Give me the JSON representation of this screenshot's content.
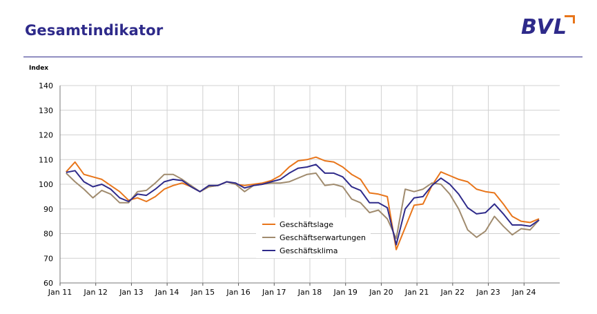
{
  "header": {
    "title": "Gesamtindikator",
    "logo": "BVL"
  },
  "colors": {
    "brand": "#2e2a8a",
    "accent": "#e8751a",
    "grid": "#d0d0d0"
  },
  "chart_data": {
    "type": "line",
    "ylabel": "Index",
    "ylim": [
      60,
      140
    ],
    "yticks": [
      60,
      70,
      80,
      90,
      100,
      110,
      120,
      130,
      140
    ],
    "xlim": [
      2011.0,
      2025.0
    ],
    "xticks": [
      {
        "label": "Jan 11",
        "x": 2011
      },
      {
        "label": "Jan 12",
        "x": 2012
      },
      {
        "label": "Jan 13",
        "x": 2013
      },
      {
        "label": "Jan 14",
        "x": 2014
      },
      {
        "label": "Jan 15",
        "x": 2015
      },
      {
        "label": "Jan 16",
        "x": 2016
      },
      {
        "label": "Jan 17",
        "x": 2017
      },
      {
        "label": "Jan 18",
        "x": 2018
      },
      {
        "label": "Jan 19",
        "x": 2019
      },
      {
        "label": "Jan 20",
        "x": 2020
      },
      {
        "label": "Jan 21",
        "x": 2021
      },
      {
        "label": "Jan 22",
        "x": 2022
      },
      {
        "label": "Jan 23",
        "x": 2023
      },
      {
        "label": "Jan 24",
        "x": 2024
      }
    ],
    "grid": true,
    "legend": "bottom-center",
    "x": [
      2011.17,
      2011.42,
      2011.67,
      2011.92,
      2012.17,
      2012.42,
      2012.67,
      2012.92,
      2013.17,
      2013.42,
      2013.67,
      2013.92,
      2014.17,
      2014.42,
      2014.67,
      2014.92,
      2015.17,
      2015.42,
      2015.67,
      2015.92,
      2016.17,
      2016.42,
      2016.67,
      2016.92,
      2017.17,
      2017.42,
      2017.67,
      2017.92,
      2018.17,
      2018.42,
      2018.67,
      2018.92,
      2019.17,
      2019.42,
      2019.67,
      2019.92,
      2020.17,
      2020.42,
      2020.67,
      2020.92,
      2021.17,
      2021.42,
      2021.67,
      2021.92,
      2022.17,
      2022.42,
      2022.67,
      2022.92,
      2023.17,
      2023.42,
      2023.67,
      2023.92,
      2024.17,
      2024.42
    ],
    "series": [
      {
        "name": "Geschäftslage",
        "color": "#e8751a",
        "values": [
          105,
          109,
          104,
          103,
          102,
          99.5,
          97,
          93.5,
          94.5,
          93,
          95,
          98,
          99.5,
          100.5,
          99,
          97,
          99,
          99.5,
          101,
          100,
          99.5,
          100,
          100.5,
          101.5,
          103.5,
          107,
          109.5,
          110,
          111,
          109.5,
          109,
          107,
          104,
          102,
          96.5,
          96,
          95,
          73.5,
          82.5,
          91.5,
          92,
          99.5,
          105,
          103.5,
          102,
          101,
          98,
          97,
          96.5,
          92,
          87,
          85,
          84.5,
          86
        ]
      },
      {
        "name": "Geschäftserwartungen",
        "color": "#a08b6e",
        "values": [
          104.5,
          101,
          98,
          94.5,
          97.5,
          96,
          92.5,
          92.5,
          97,
          97.5,
          100.5,
          104,
          104,
          102,
          99.5,
          97,
          99,
          99.5,
          101,
          100,
          97,
          99.5,
          100,
          100.5,
          100.5,
          101,
          102.5,
          104,
          104.5,
          99.5,
          100,
          99,
          94,
          92.5,
          88.5,
          89.5,
          86,
          78,
          98,
          97,
          98,
          100.5,
          100,
          96,
          90,
          81.5,
          78.5,
          81,
          87,
          83,
          79.5,
          82,
          81.5,
          85.5
        ]
      },
      {
        "name": "Geschäftsklima",
        "color": "#2e2a8a",
        "values": [
          104.8,
          105.5,
          101,
          99,
          100,
          98,
          94.5,
          93,
          96,
          95.5,
          98,
          101,
          102,
          101.5,
          99,
          97,
          99.5,
          99.5,
          101,
          100.5,
          98.5,
          99.5,
          100,
          101,
          102,
          104.5,
          106.5,
          107,
          108,
          104.5,
          104.5,
          103,
          99,
          97.5,
          92.5,
          92.5,
          90.5,
          75.5,
          90,
          94.5,
          95,
          99.5,
          102.5,
          100,
          96,
          90.5,
          88,
          88.5,
          92,
          88,
          83.5,
          83.5,
          83,
          85.5
        ]
      }
    ]
  }
}
